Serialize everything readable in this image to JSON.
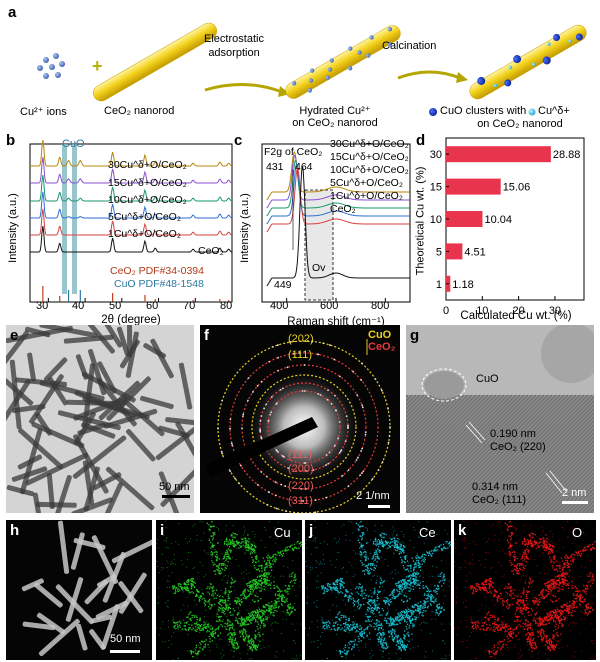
{
  "panels": {
    "a": {
      "label": "a",
      "cu_ions": "Cu²⁺ ions",
      "nanorod": "CeO₂ nanorod",
      "arrow1": [
        "Electrostatic",
        "adsorption"
      ],
      "arrow2": "Calcination",
      "hydrated": [
        "Hydrated Cu²⁺",
        "on CeO₂ nanorod"
      ],
      "clusters": [
        "CuO clusters with",
        "Cu^δ+",
        "on CeO₂ nanorod"
      ],
      "colors": {
        "rod": "#f3d21d",
        "ion": "#4a6fb4",
        "cluster": "#1c3fc4",
        "cu_delta": "#3fc3e0"
      }
    },
    "b": {
      "label": "b",
      "cuo_tag": "CuO",
      "series": [
        "30Cu^δ+O/CeO₂",
        "15Cu^δ+O/CeO₂",
        "10Cu^δ+O/CeO₂",
        "5Cu^δ+O/CeO₂",
        "1Cu^δ+O/CeO₂",
        "CeO₂"
      ],
      "pdf1": "CeO₂ PDF#34-0394",
      "pdf2": "CuO PDF#48-1548",
      "xlabel": "2θ (degree)",
      "ylabel": "Intensity (a.u.)",
      "xticks": [
        "30",
        "40",
        "50",
        "60",
        "70",
        "80"
      ]
    },
    "c": {
      "label": "c",
      "f2g": "F2g of CeO₂",
      "peak1": "431",
      "peak2": "464",
      "peak3": "449",
      "ov": "Ov",
      "series": [
        "30Cu^δ+O/CeO₂",
        "15Cu^δ+O/CeO₂",
        "10Cu^δ+O/CeO₂",
        "5Cu^δ+O/CeO₂",
        "1Cu^δ+O/CeO₂",
        "CeO₂"
      ],
      "xlabel": "Raman shift (cm⁻¹)",
      "ylabel": "Intensity (a.u.)",
      "xticks": [
        "400",
        "600",
        "800"
      ]
    },
    "d": {
      "label": "d",
      "xlabel": "Calculated Cu wt. (%)",
      "ylabel": "Theoretical Cu wt. (%)",
      "xticks": [
        "0",
        "10",
        "20",
        "30"
      ]
    },
    "e": {
      "label": "e",
      "scale": "50 nm"
    },
    "f": {
      "label": "f",
      "scale": "2 1/nm",
      "legend_cuo": "CuO",
      "legend_ceo2": "CeO₂",
      "rings_yellow": [
        "(202)",
        "(111)"
      ],
      "rings_red": [
        "(111)",
        "(200)",
        "(220)",
        "(311)"
      ]
    },
    "g": {
      "label": "g",
      "cuo": "CuO",
      "d1": "0.190 nm",
      "d1b": "CeO₂ (220)",
      "d2": "0.314 nm",
      "d2b": "CeO₂ (111)",
      "scale": "2 nm"
    },
    "h": {
      "label": "h",
      "scale": "50 nm"
    },
    "i": {
      "label": "i",
      "element": "Cu",
      "color": "#22c422"
    },
    "j": {
      "label": "j",
      "element": "Ce",
      "color": "#16b8c8"
    },
    "k": {
      "label": "k",
      "element": "O",
      "color": "#e01616"
    }
  },
  "chart_data": [
    {
      "type": "line",
      "title": "",
      "xlabel": "2θ (degree)",
      "ylabel": "Intensity (a.u.)",
      "xlim": [
        25,
        80
      ],
      "peaks_2theta": [
        28.5,
        33.1,
        47.5,
        56.3,
        59.1,
        69.4,
        76.7,
        79.1
      ],
      "cuo_peaks_2theta": [
        35.5,
        38.7
      ],
      "series": [
        {
          "name": "30Cu^δ+O/CeO₂",
          "color": "#b8860b"
        },
        {
          "name": "15Cu^δ+O/CeO₂",
          "color": "#8a4fd0"
        },
        {
          "name": "10Cu^δ+O/CeO₂",
          "color": "#1a9a6a"
        },
        {
          "name": "5Cu^δ+O/CeO₂",
          "color": "#2f6fd6"
        },
        {
          "name": "1Cu^δ+O/CeO₂",
          "color": "#d64040"
        },
        {
          "name": "CeO₂",
          "color": "#111111"
        }
      ]
    },
    {
      "type": "line",
      "title": "",
      "xlabel": "Raman shift (cm⁻¹)",
      "ylabel": "Intensity (a.u.)",
      "xlim": [
        300,
        900
      ],
      "peak_positions": [
        431,
        449,
        464
      ],
      "series": [
        {
          "name": "30Cu^δ+O/CeO₂",
          "color": "#b8860b"
        },
        {
          "name": "15Cu^δ+O/CeO₂",
          "color": "#8a4fd0"
        },
        {
          "name": "10Cu^δ+O/CeO₂",
          "color": "#1a9a6a"
        },
        {
          "name": "5Cu^δ+O/CeO₂",
          "color": "#2f6fd6"
        },
        {
          "name": "1Cu^δ+O/CeO₂",
          "color": "#d64040"
        },
        {
          "name": "CeO₂",
          "color": "#111111"
        }
      ]
    },
    {
      "type": "bar",
      "orientation": "horizontal",
      "title": "",
      "xlabel": "Calculated Cu wt. (%)",
      "ylabel": "Theoretical Cu wt. (%)",
      "categories": [
        "1",
        "5",
        "10",
        "15",
        "30"
      ],
      "values": [
        1.18,
        4.51,
        10.04,
        15.06,
        28.88
      ],
      "value_labels": [
        "1.18",
        "4.51",
        "10.04",
        "15.06",
        "28.88"
      ],
      "xlim": [
        0,
        38
      ],
      "bar_color": "#e8344c"
    }
  ]
}
